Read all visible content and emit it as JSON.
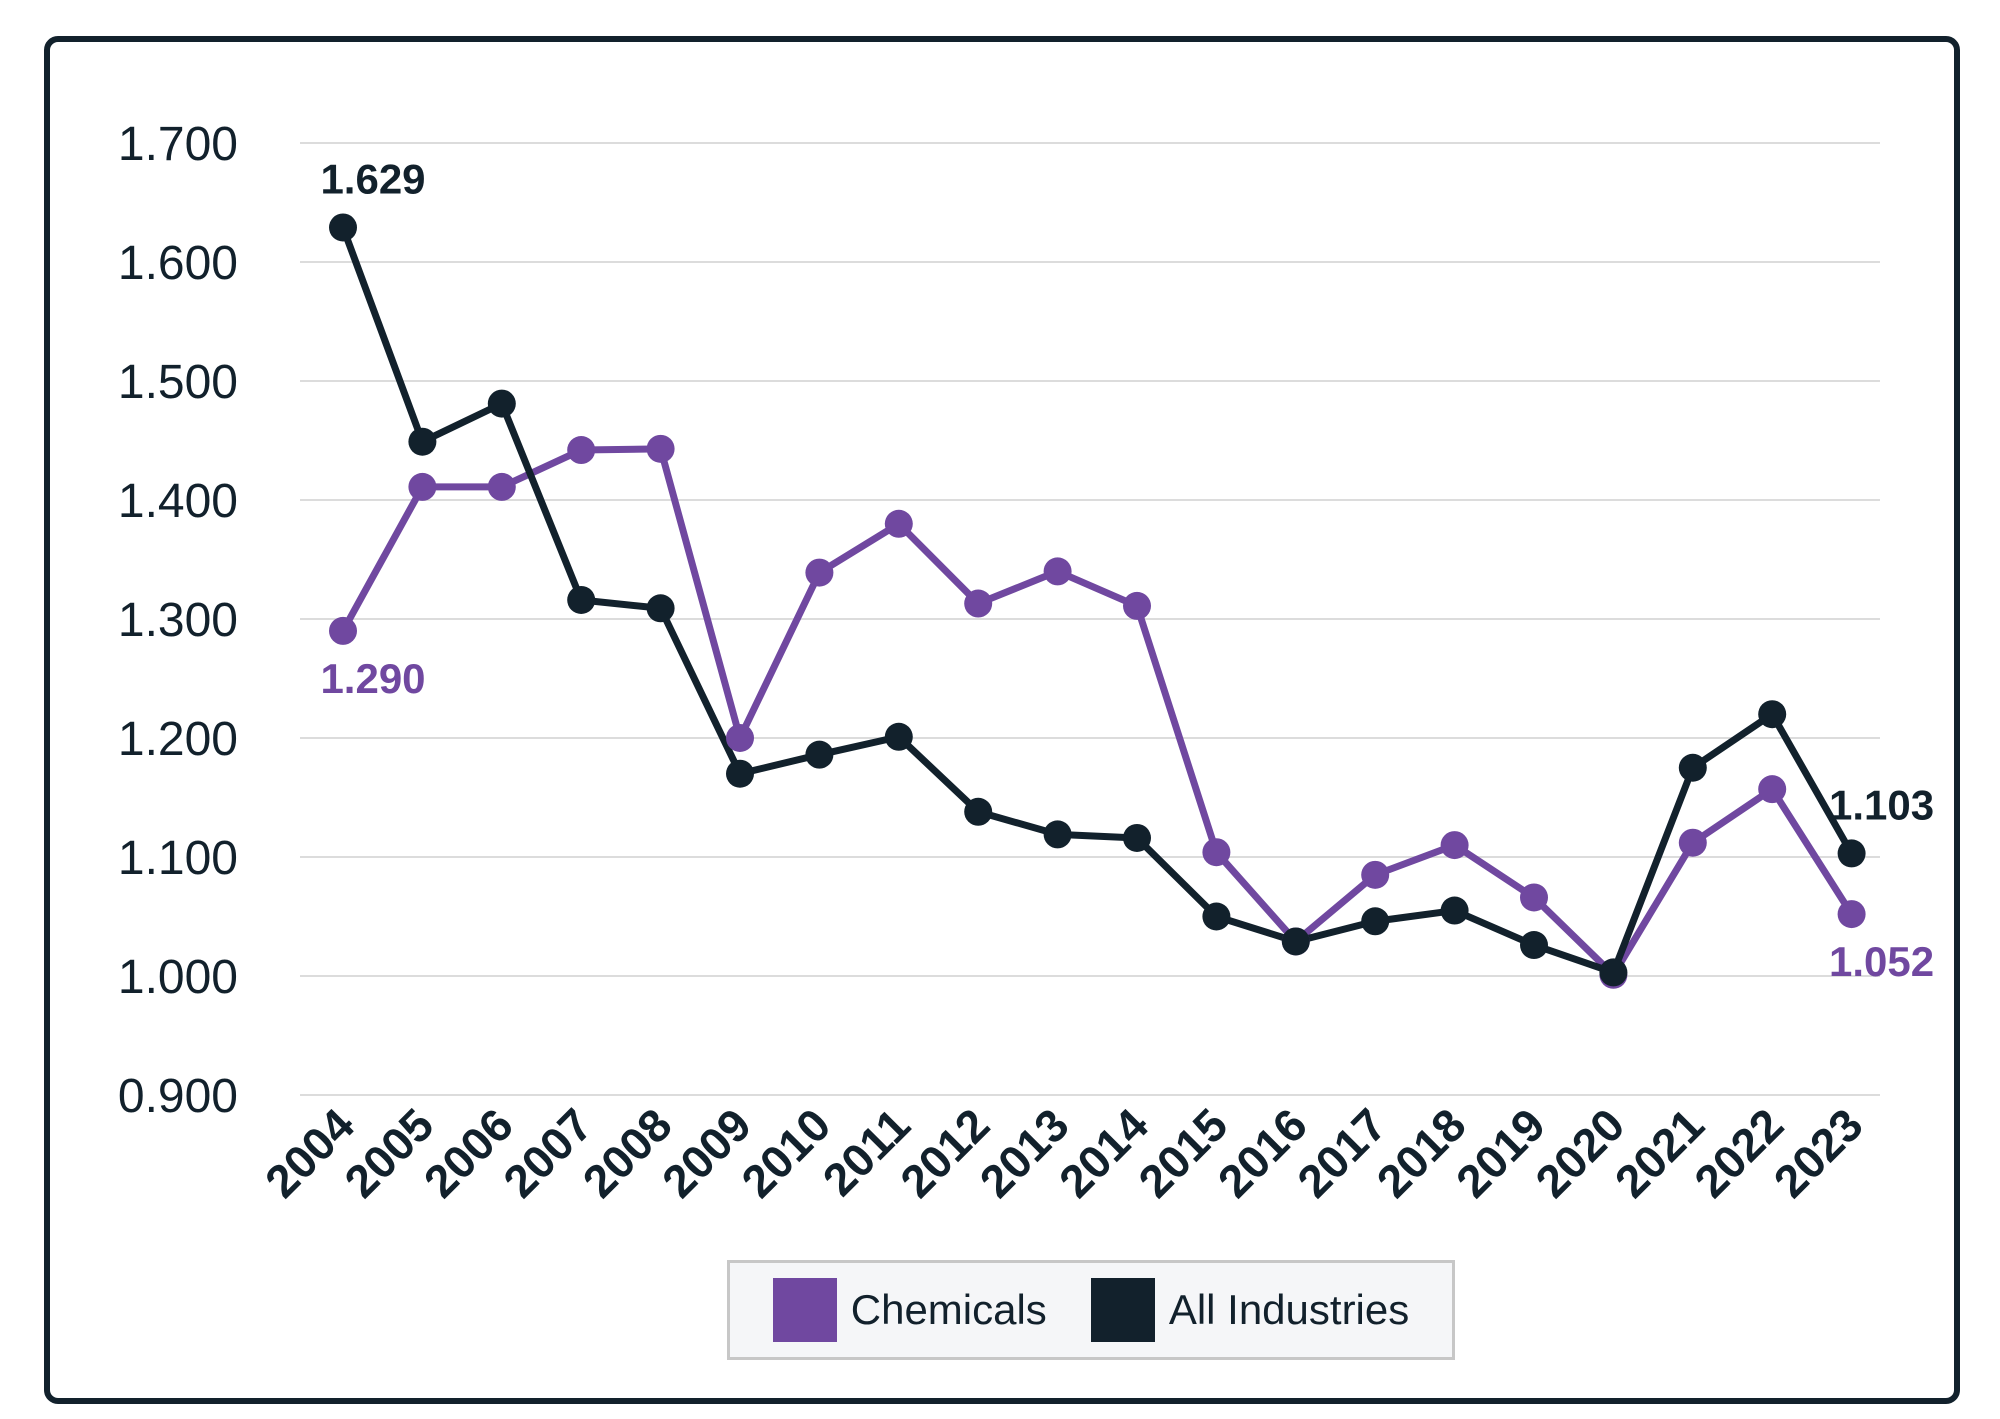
{
  "chart_data": {
    "type": "line",
    "categories": [
      "2004",
      "2005",
      "2006",
      "2007",
      "2008",
      "2009",
      "2010",
      "2011",
      "2012",
      "2013",
      "2014",
      "2015",
      "2016",
      "2017",
      "2018",
      "2019",
      "2020",
      "2021",
      "2022",
      "2023"
    ],
    "ylim": [
      0.9,
      1.7
    ],
    "yticks": [
      "0.900",
      "1.000",
      "1.100",
      "1.200",
      "1.300",
      "1.400",
      "1.500",
      "1.600",
      "1.700"
    ],
    "grid": true,
    "legend_position": "bottom",
    "series": [
      {
        "name": "Chemicals",
        "color": "#7048a0",
        "values": [
          1.29,
          1.411,
          1.411,
          1.442,
          1.443,
          1.2,
          1.339,
          1.38,
          1.313,
          1.34,
          1.311,
          1.104,
          1.029,
          1.085,
          1.11,
          1.066,
          1.001,
          1.112,
          1.157,
          1.052
        ],
        "labels": [
          {
            "index": 0,
            "text": "1.290",
            "position": "below"
          },
          {
            "index": 19,
            "text": "1.052",
            "position": "below"
          }
        ]
      },
      {
        "name": "All Industries",
        "color": "#12212c",
        "values": [
          1.629,
          1.449,
          1.481,
          1.316,
          1.309,
          1.17,
          1.186,
          1.201,
          1.138,
          1.119,
          1.116,
          1.05,
          1.029,
          1.046,
          1.055,
          1.026,
          1.003,
          1.175,
          1.22,
          1.103
        ],
        "labels": [
          {
            "index": 0,
            "text": "1.629",
            "position": "above"
          },
          {
            "index": 19,
            "text": "1.103",
            "position": "above"
          }
        ]
      }
    ]
  }
}
